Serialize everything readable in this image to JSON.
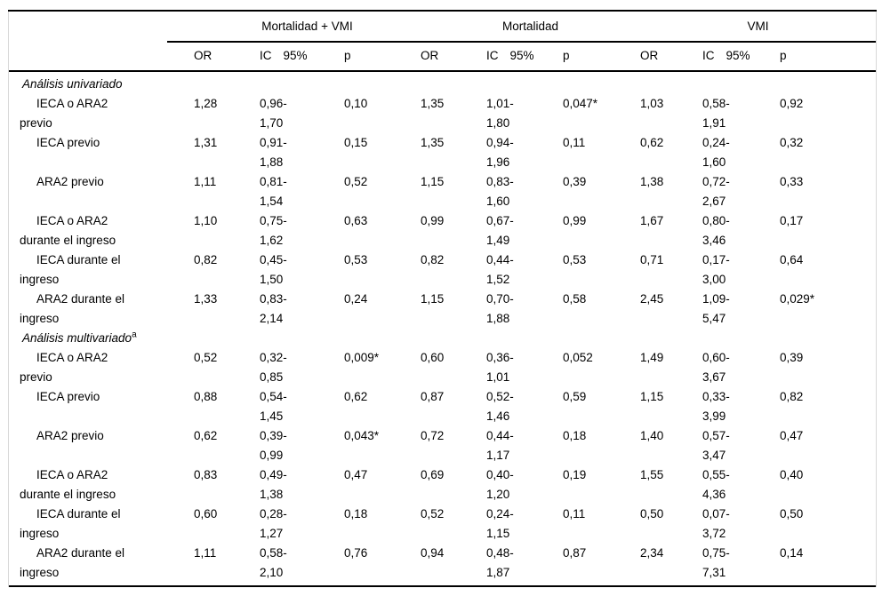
{
  "table": {
    "groups": [
      {
        "label": "Mortalidad + VMI"
      },
      {
        "label": "Mortalidad"
      },
      {
        "label": "VMI"
      }
    ],
    "sub_headers": {
      "or": "OR",
      "ic": "IC",
      "ic_pct": "95%",
      "p": "p"
    },
    "sections": [
      {
        "title": "Análisis univariado",
        "sup": "",
        "rows": [
          {
            "label1": "IECA o ARA2",
            "label2": "previo",
            "g": [
              {
                "or": "1,28",
                "ic1": "0,96-",
                "ic2": "1,70",
                "p": "0,10"
              },
              {
                "or": "1,35",
                "ic1": "1,01-",
                "ic2": "1,80",
                "p": "0,047*"
              },
              {
                "or": "1,03",
                "ic1": "0,58-",
                "ic2": "1,91",
                "p": "0,92"
              }
            ]
          },
          {
            "label1": "IECA previo",
            "label2": "",
            "g": [
              {
                "or": "1,31",
                "ic1": "0,91-",
                "ic2": "1,88",
                "p": "0,15"
              },
              {
                "or": "1,35",
                "ic1": "0,94-",
                "ic2": "1,96",
                "p": "0,11"
              },
              {
                "or": "0,62",
                "ic1": "0,24-",
                "ic2": "1,60",
                "p": "0,32"
              }
            ]
          },
          {
            "label1": "ARA2 previo",
            "label2": "",
            "g": [
              {
                "or": "1,11",
                "ic1": "0,81-",
                "ic2": "1,54",
                "p": "0,52"
              },
              {
                "or": "1,15",
                "ic1": "0,83-",
                "ic2": "1,60",
                "p": "0,39"
              },
              {
                "or": "1,38",
                "ic1": "0,72-",
                "ic2": "2,67",
                "p": "0,33"
              }
            ]
          },
          {
            "label1": "IECA o ARA2",
            "label2": "durante el ingreso",
            "g": [
              {
                "or": "1,10",
                "ic1": "0,75-",
                "ic2": "1,62",
                "p": "0,63"
              },
              {
                "or": "0,99",
                "ic1": "0,67-",
                "ic2": "1,49",
                "p": "0,99"
              },
              {
                "or": "1,67",
                "ic1": "0,80-",
                "ic2": "3,46",
                "p": "0,17"
              }
            ]
          },
          {
            "label1": "IECA durante el",
            "label2": "ingreso",
            "g": [
              {
                "or": "0,82",
                "ic1": "0,45-",
                "ic2": "1,50",
                "p": "0,53"
              },
              {
                "or": "0,82",
                "ic1": "0,44-",
                "ic2": "1,52",
                "p": "0,53"
              },
              {
                "or": "0,71",
                "ic1": "0,17-",
                "ic2": "3,00",
                "p": "0,64"
              }
            ]
          },
          {
            "label1": "ARA2 durante el",
            "label2": "ingreso",
            "g": [
              {
                "or": "1,33",
                "ic1": "0,83-",
                "ic2": "2,14",
                "p": "0,24"
              },
              {
                "or": "1,15",
                "ic1": "0,70-",
                "ic2": "1,88",
                "p": "0,58"
              },
              {
                "or": "2,45",
                "ic1": "1,09-",
                "ic2": "5,47",
                "p": "0,029*"
              }
            ]
          }
        ]
      },
      {
        "title": "Análisis multivariado",
        "sup": "a",
        "rows": [
          {
            "label1": "IECA o ARA2",
            "label2": "previo",
            "g": [
              {
                "or": "0,52",
                "ic1": "0,32-",
                "ic2": "0,85",
                "p": "0,009*"
              },
              {
                "or": "0,60",
                "ic1": "0,36-",
                "ic2": "1,01",
                "p": "0,052"
              },
              {
                "or": "1,49",
                "ic1": "0,60-",
                "ic2": "3,67",
                "p": "0,39"
              }
            ]
          },
          {
            "label1": "IECA previo",
            "label2": "",
            "g": [
              {
                "or": "0,88",
                "ic1": "0,54-",
                "ic2": "1,45",
                "p": "0,62"
              },
              {
                "or": "0,87",
                "ic1": "0,52-",
                "ic2": "1,46",
                "p": "0,59"
              },
              {
                "or": "1,15",
                "ic1": "0,33-",
                "ic2": "3,99",
                "p": "0,82"
              }
            ]
          },
          {
            "label1": "ARA2 previo",
            "label2": "",
            "g": [
              {
                "or": "0,62",
                "ic1": "0,39-",
                "ic2": "0,99",
                "p": "0,043*"
              },
              {
                "or": "0,72",
                "ic1": "0,44-",
                "ic2": "1,17",
                "p": "0,18"
              },
              {
                "or": "1,40",
                "ic1": "0,57-",
                "ic2": "3,47",
                "p": "0,47"
              }
            ]
          },
          {
            "label1": "IECA o ARA2",
            "label2": "durante el ingreso",
            "g": [
              {
                "or": "0,83",
                "ic1": "0,49-",
                "ic2": "1,38",
                "p": "0,47"
              },
              {
                "or": "0,69",
                "ic1": "0,40-",
                "ic2": "1,20",
                "p": "0,19"
              },
              {
                "or": "1,55",
                "ic1": "0,55-",
                "ic2": "4,36",
                "p": "0,40"
              }
            ]
          },
          {
            "label1": "IECA durante el",
            "label2": "ingreso",
            "g": [
              {
                "or": "0,60",
                "ic1": "0,28-",
                "ic2": "1,27",
                "p": "0,18"
              },
              {
                "or": "0,52",
                "ic1": "0,24-",
                "ic2": "1,15",
                "p": "0,11"
              },
              {
                "or": "0,50",
                "ic1": "0,07-",
                "ic2": "3,72",
                "p": "0,50"
              }
            ]
          },
          {
            "label1": "ARA2 durante el",
            "label2": "ingreso",
            "g": [
              {
                "or": "1,11",
                "ic1": "0,58-",
                "ic2": "2,10",
                "p": "0,76"
              },
              {
                "or": "0,94",
                "ic1": "0,48-",
                "ic2": "1,87",
                "p": "0,87"
              },
              {
                "or": "2,34",
                "ic1": "0,75-",
                "ic2": "7,31",
                "p": "0,14"
              }
            ]
          }
        ]
      }
    ]
  }
}
